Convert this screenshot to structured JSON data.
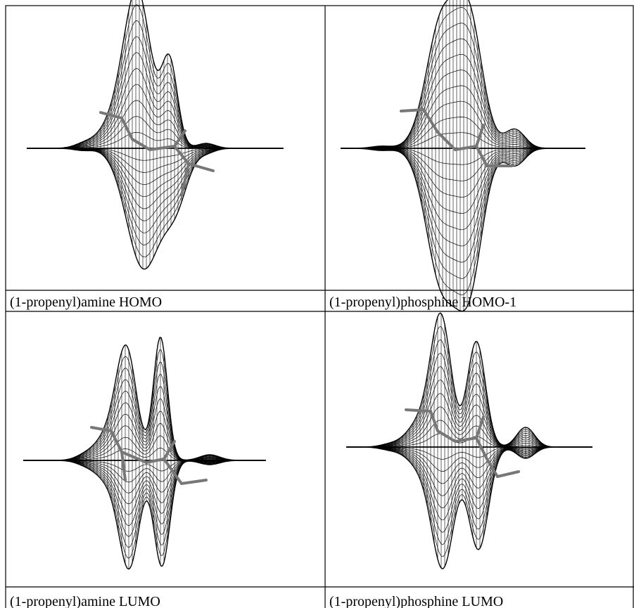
{
  "panels": [
    {
      "caption": "(1-propenyl)amine HOMO"
    },
    {
      "caption": "(1-propenyl)phosphine HOMO-1"
    },
    {
      "caption": "(1-propenyl)amine LUMO"
    },
    {
      "caption": "(1-propenyl)phosphine LUMO"
    }
  ]
}
